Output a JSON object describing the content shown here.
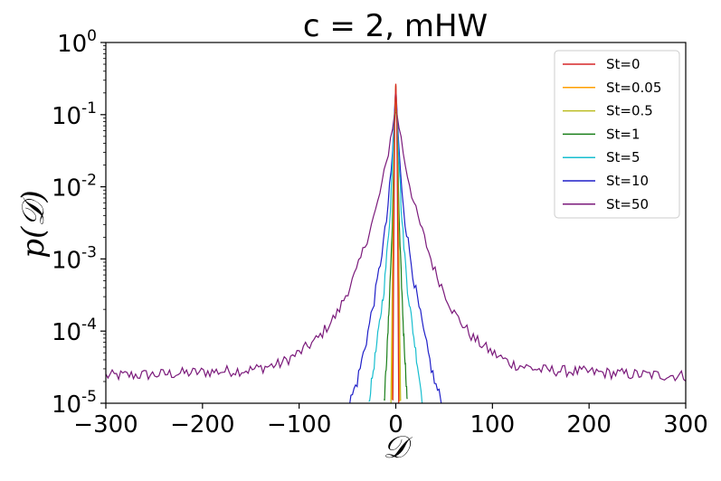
{
  "chart_data": {
    "type": "line",
    "title": "c = 2, mHW",
    "xlabel": "𝒟",
    "ylabel": "p(𝒟)",
    "xlim": [
      -300,
      300
    ],
    "ylim": [
      1e-05,
      1
    ],
    "yscale": "log",
    "grid": false,
    "legend_position": "top-right",
    "x_ticks": [
      "−300",
      "−200",
      "−100",
      "0",
      "100",
      "200",
      "300"
    ],
    "x_tick_values": [
      -300,
      -200,
      -100,
      0,
      100,
      200,
      300
    ],
    "y_ticks": [
      {
        "base": "10",
        "exp": "-5",
        "value": 1e-05
      },
      {
        "base": "10",
        "exp": "-4",
        "value": 0.0001
      },
      {
        "base": "10",
        "exp": "-3",
        "value": 0.001
      },
      {
        "base": "10",
        "exp": "-2",
        "value": 0.01
      },
      {
        "base": "10",
        "exp": "-1",
        "value": 0.1
      },
      {
        "base": "10",
        "exp": "0",
        "value": 1
      }
    ],
    "series": [
      {
        "name": "St=0",
        "color": "#d62728",
        "noise": 0.12,
        "x": [
          -3,
          -2,
          -1,
          0,
          1,
          2,
          3
        ],
        "y": [
          1e-05,
          0.002,
          0.1,
          0.27,
          0.1,
          0.002,
          1e-05
        ]
      },
      {
        "name": "St=0.05",
        "color": "#ff9f00",
        "noise": 0.12,
        "x": [
          -4,
          -2.5,
          -1,
          0,
          1,
          2.5,
          4
        ],
        "y": [
          1e-05,
          0.002,
          0.1,
          0.27,
          0.1,
          0.002,
          1e-05
        ]
      },
      {
        "name": "St=0.5",
        "color": "#bcbd22",
        "noise": 0.12,
        "x": [
          -5,
          -3,
          -1,
          0,
          1,
          3,
          5
        ],
        "y": [
          1e-05,
          0.002,
          0.1,
          0.26,
          0.1,
          0.002,
          1e-05
        ]
      },
      {
        "name": "St=1",
        "color": "#1a7f1a",
        "noise": 0.15,
        "x": [
          -12,
          -8,
          -4,
          -1,
          0,
          1,
          4,
          8,
          12
        ],
        "y": [
          1e-05,
          0.0001,
          0.002,
          0.08,
          0.22,
          0.08,
          0.002,
          0.0001,
          1e-05
        ]
      },
      {
        "name": "St=5",
        "color": "#17becf",
        "noise": 0.15,
        "x": [
          -28,
          -20,
          -12,
          -6,
          -2,
          0,
          2,
          6,
          12,
          20,
          28
        ],
        "y": [
          1e-05,
          6e-05,
          0.0004,
          0.004,
          0.06,
          0.2,
          0.06,
          0.004,
          0.0004,
          6e-05,
          1e-05
        ]
      },
      {
        "name": "St=10",
        "color": "#1f1fc8",
        "noise": 0.18,
        "x": [
          -48,
          -40,
          -30,
          -20,
          -10,
          -4,
          0,
          4,
          10,
          20,
          30,
          40,
          48
        ],
        "y": [
          1e-05,
          2e-05,
          8e-05,
          0.0004,
          0.003,
          0.02,
          0.25,
          0.02,
          0.003,
          0.0004,
          8e-05,
          2e-05,
          1e-05
        ]
      },
      {
        "name": "St=50",
        "color": "#7b1a7b",
        "noise": 0.16,
        "x": [
          -300,
          -250,
          -200,
          -150,
          -120,
          -100,
          -80,
          -60,
          -40,
          -20,
          -10,
          0,
          10,
          20,
          40,
          60,
          80,
          100,
          120,
          150,
          200,
          250,
          300
        ],
        "y": [
          2.4e-05,
          2.5e-05,
          2.7e-05,
          2.9e-05,
          3.5e-05,
          5e-05,
          8e-05,
          0.00018,
          0.0007,
          0.005,
          0.02,
          0.13,
          0.02,
          0.005,
          0.0007,
          0.00018,
          8e-05,
          5e-05,
          3.5e-05,
          2.9e-05,
          2.7e-05,
          2.5e-05,
          2.4e-05
        ]
      }
    ]
  }
}
